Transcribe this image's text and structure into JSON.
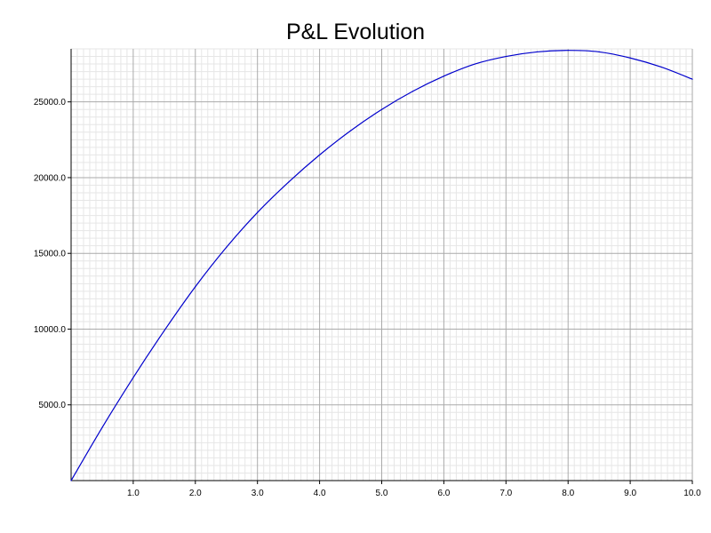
{
  "chart_data": {
    "type": "line",
    "title": "P&L Evolution",
    "xlabel": "",
    "ylabel": "",
    "xlim": [
      0,
      10
    ],
    "ylim": [
      0,
      28500
    ],
    "grid": true,
    "x_ticks": [
      "1.0",
      "2.0",
      "3.0",
      "4.0",
      "5.0",
      "6.0",
      "7.0",
      "8.0",
      "9.0",
      "10.0"
    ],
    "y_ticks": [
      "5000.0",
      "10000.0",
      "15000.0",
      "20000.0",
      "25000.0"
    ],
    "series": [
      {
        "color": "#0000cc",
        "x": [
          0.0,
          0.5,
          1.0,
          1.5,
          2.0,
          2.5,
          3.0,
          3.5,
          4.0,
          4.5,
          5.0,
          5.5,
          6.0,
          6.5,
          7.0,
          7.5,
          8.0,
          8.5,
          9.0,
          9.5,
          10.0
        ],
        "y": [
          0,
          3500,
          6800,
          9900,
          12800,
          15400,
          17700,
          19700,
          21500,
          23100,
          24500,
          25700,
          26700,
          27500,
          28000,
          28300,
          28400,
          28300,
          27900,
          27300,
          26500
        ]
      }
    ]
  }
}
